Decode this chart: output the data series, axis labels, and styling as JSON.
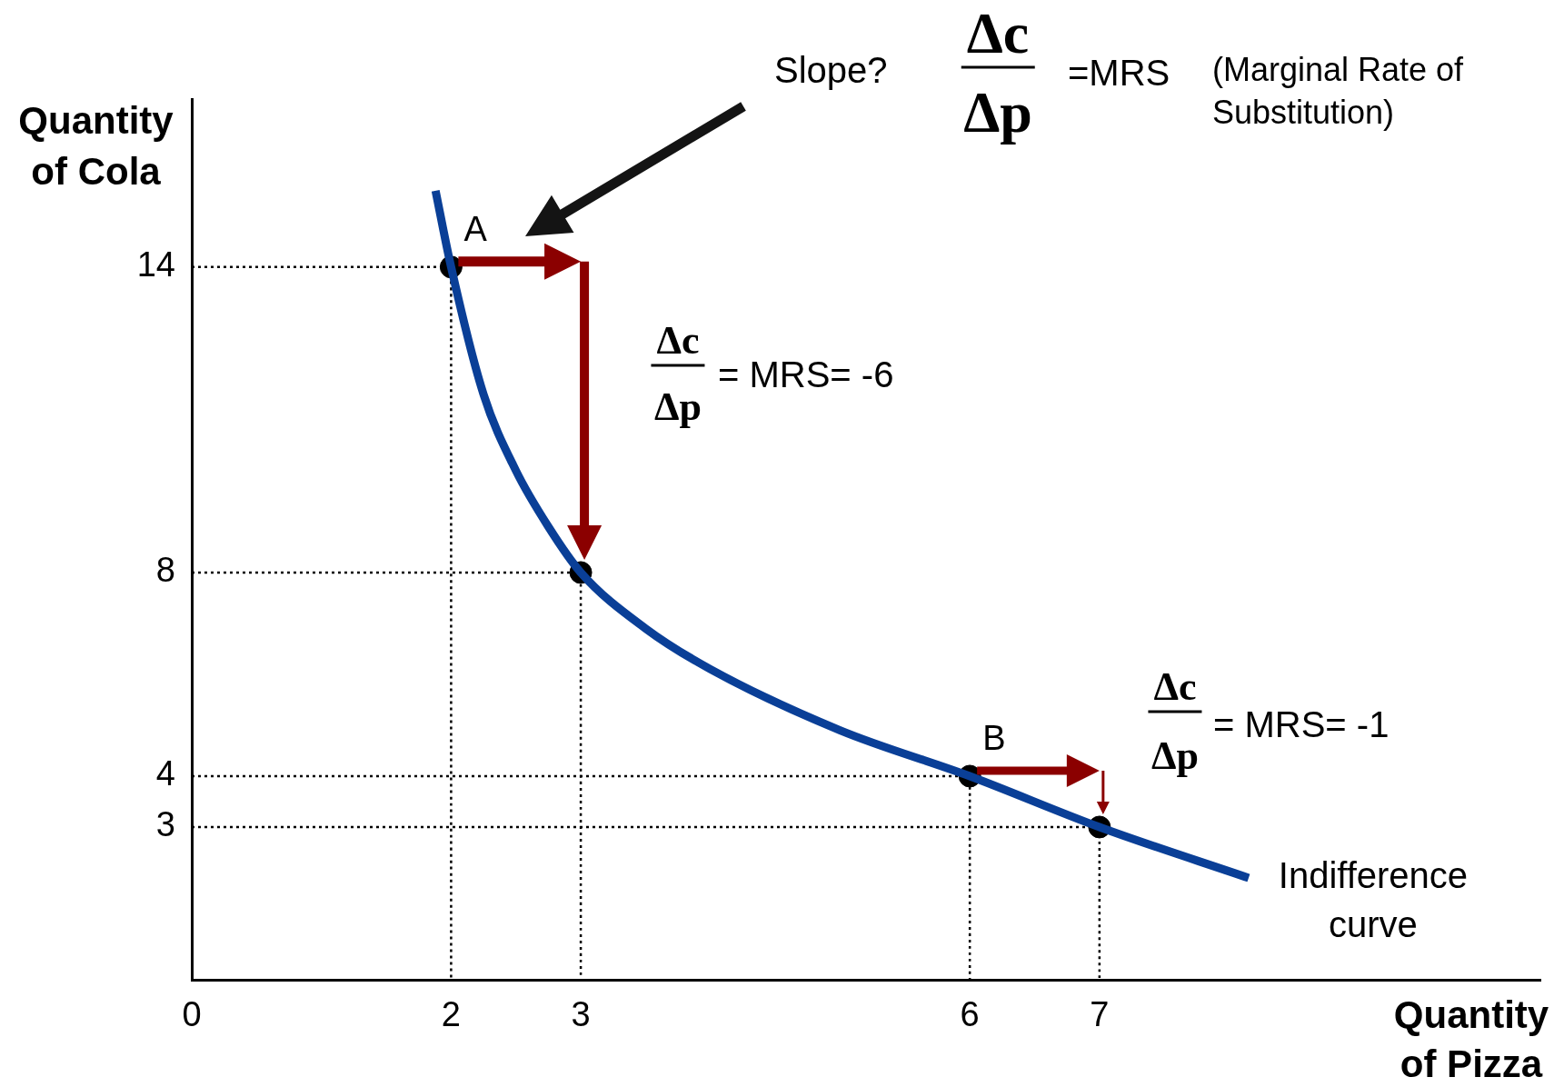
{
  "chart_data": {
    "type": "line",
    "xlabel": "Quantity of Pizza",
    "ylabel": "Quantity of Cola",
    "xlim": [
      0,
      10.4
    ],
    "ylim": [
      0,
      17.3
    ],
    "xticks": [
      0,
      2,
      3,
      6,
      7
    ],
    "yticks": [
      3,
      4,
      8,
      14
    ],
    "annotations": [
      "Slope?",
      "Δc",
      "Δp",
      "=MRS",
      "(Marginal Rate of Substitution)",
      "Δc",
      "Δp",
      "= MRS= -6",
      "Δc",
      "Δp",
      "= MRS= -1",
      {
        "text": "A",
        "x": 2,
        "y": 14
      },
      {
        "text": "B",
        "x": 6,
        "y": 4
      }
    ],
    "series": [
      {
        "name": "Indifference curve",
        "color": "#0a3f97",
        "marker": "none",
        "x": [
          1.88,
          2,
          2.25,
          2.5,
          2.75,
          3,
          3.5,
          4,
          5,
          6,
          7,
          8.15
        ],
        "values": [
          15.5,
          14,
          11.5,
          10,
          8.9,
          8,
          6.9,
          6.1,
          4.9,
          4,
          3,
          2
        ]
      },
      {
        "type": "scatter",
        "color": "#000000",
        "marker": "circle",
        "x": [
          2,
          3,
          6,
          7
        ],
        "values": [
          14,
          8,
          4,
          3
        ]
      },
      {
        "color": "#000000",
        "marker": "none",
        "line_style": "dotted",
        "x": [
          0,
          2,
          2
        ],
        "values": [
          14,
          14,
          0
        ]
      },
      {
        "color": "#000000",
        "marker": "none",
        "line_style": "dotted",
        "x": [
          0,
          3,
          3
        ],
        "values": [
          8,
          8,
          0
        ]
      },
      {
        "color": "#000000",
        "marker": "none",
        "line_style": "dotted",
        "x": [
          0,
          6,
          6
        ],
        "values": [
          4,
          4,
          0
        ]
      },
      {
        "color": "#000000",
        "marker": "none",
        "line_style": "dotted",
        "x": [
          0,
          7,
          7
        ],
        "values": [
          3,
          3,
          0
        ]
      }
    ]
  }
}
